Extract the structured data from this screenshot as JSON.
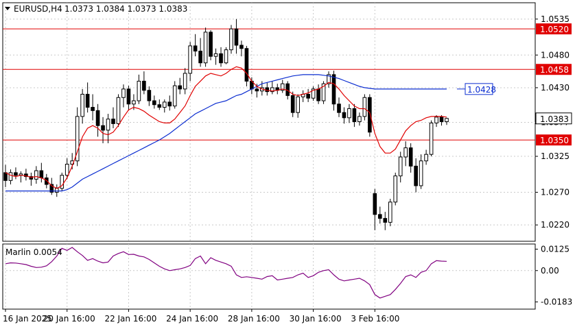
{
  "header": {
    "symbol": "EURUSD,H4",
    "ohlc": "1.0373 1.0384 1.0373 1.0383"
  },
  "colors": {
    "up_candle": "#000000",
    "down_candle": "#000000",
    "bg": "#ffffff",
    "red_level": "#e00000",
    "ma_red": "#e00000",
    "ma_blue": "#0a2cd0",
    "grid": "#c8c8c8",
    "oscillator": "#800080"
  },
  "chart_data": [
    {
      "type": "candlestick",
      "title": "EURUSD,H4",
      "ylim": [
        1.0195,
        1.056
      ],
      "y_ticks": [
        "1.0535",
        "1.0480",
        "1.0430",
        "1.0377",
        "1.0325",
        "1.0270",
        "1.0220"
      ],
      "x_ticks": [
        "16 Jan 2025",
        "20 Jan 16:00",
        "22 Jan 16:00",
        "24 Jan 16:00",
        "28 Jan 16:00",
        "30 Jan 16:00",
        "3 Feb 16:00"
      ],
      "horizontal_levels": [
        {
          "label": "1.0520",
          "value": 1.052
        },
        {
          "label": "1.0458",
          "value": 1.0458
        },
        {
          "label": "1.0350",
          "value": 1.035
        }
      ],
      "current_price_label": "1.0383",
      "current_price": 1.0383,
      "ma_blue_label": "1.0428",
      "ma_blue_value": 1.0428,
      "candles": [
        [
          1.03,
          1.0312,
          1.0278,
          1.0288
        ],
        [
          1.0288,
          1.0305,
          1.0282,
          1.03
        ],
        [
          1.03,
          1.0308,
          1.029,
          1.0296
        ],
        [
          1.0296,
          1.0302,
          1.0285,
          1.0298
        ],
        [
          1.0298,
          1.0306,
          1.0288,
          1.0294
        ],
        [
          1.0294,
          1.03,
          1.028,
          1.029
        ],
        [
          1.029,
          1.031,
          1.0283,
          1.0303
        ],
        [
          1.0303,
          1.0315,
          1.0285,
          1.0292
        ],
        [
          1.0292,
          1.0298,
          1.0276,
          1.0282
        ],
        [
          1.0282,
          1.0292,
          1.0266,
          1.027
        ],
        [
          1.027,
          1.0282,
          1.0263,
          1.0276
        ],
        [
          1.0276,
          1.03,
          1.0272,
          1.0296
        ],
        [
          1.0296,
          1.0322,
          1.029,
          1.0313
        ],
        [
          1.0313,
          1.033,
          1.0305,
          1.0318
        ],
        [
          1.0318,
          1.04,
          1.031,
          1.0386
        ],
        [
          1.0386,
          1.0428,
          1.0375,
          1.042
        ],
        [
          1.042,
          1.0438,
          1.0392,
          1.04
        ],
        [
          1.04,
          1.042,
          1.038,
          1.0395
        ],
        [
          1.0395,
          1.0405,
          1.0355,
          1.0372
        ],
        [
          1.0372,
          1.0385,
          1.0345,
          1.0365
        ],
        [
          1.0365,
          1.039,
          1.0345,
          1.0382
        ],
        [
          1.0382,
          1.04,
          1.0368,
          1.0375
        ],
        [
          1.0375,
          1.042,
          1.037,
          1.0415
        ],
        [
          1.0415,
          1.0435,
          1.04,
          1.0428
        ],
        [
          1.0428,
          1.0433,
          1.0395,
          1.0405
        ],
        [
          1.0405,
          1.042,
          1.0396,
          1.041
        ],
        [
          1.041,
          1.045,
          1.0405,
          1.044
        ],
        [
          1.044,
          1.0455,
          1.042,
          1.0426
        ],
        [
          1.0426,
          1.0432,
          1.0402,
          1.041
        ],
        [
          1.041,
          1.0418,
          1.0398,
          1.0404
        ],
        [
          1.0404,
          1.0412,
          1.0396,
          1.04
        ],
        [
          1.04,
          1.0412,
          1.0392,
          1.0408
        ],
        [
          1.0408,
          1.0418,
          1.0395,
          1.0402
        ],
        [
          1.0402,
          1.044,
          1.0398,
          1.0433
        ],
        [
          1.0433,
          1.0445,
          1.042,
          1.0428
        ],
        [
          1.0428,
          1.046,
          1.042,
          1.0452
        ],
        [
          1.0452,
          1.05,
          1.044,
          1.0494
        ],
        [
          1.0494,
          1.0512,
          1.0478,
          1.0486
        ],
        [
          1.0486,
          1.0506,
          1.0462,
          1.0468
        ],
        [
          1.0468,
          1.0522,
          1.0462,
          1.0515
        ],
        [
          1.0515,
          1.0518,
          1.0472,
          1.0478
        ],
        [
          1.0478,
          1.049,
          1.0465,
          1.0482
        ],
        [
          1.0482,
          1.0492,
          1.0462,
          1.0468
        ],
        [
          1.0468,
          1.0492,
          1.0466,
          1.0488
        ],
        [
          1.0488,
          1.0526,
          1.0482,
          1.052
        ],
        [
          1.052,
          1.0535,
          1.0482,
          1.0495
        ],
        [
          1.0495,
          1.0502,
          1.0478,
          1.049
        ],
        [
          1.049,
          1.0494,
          1.0432,
          1.044
        ],
        [
          1.044,
          1.0446,
          1.042,
          1.0428
        ],
        [
          1.0428,
          1.0436,
          1.0415,
          1.0425
        ],
        [
          1.0425,
          1.044,
          1.0418,
          1.043
        ],
        [
          1.043,
          1.0438,
          1.0418,
          1.0424
        ],
        [
          1.0424,
          1.044,
          1.042,
          1.043
        ],
        [
          1.043,
          1.0436,
          1.042,
          1.0426
        ],
        [
          1.0426,
          1.0442,
          1.0422,
          1.0436
        ],
        [
          1.0436,
          1.044,
          1.0412,
          1.0418
        ],
        [
          1.0418,
          1.0424,
          1.0385,
          1.0392
        ],
        [
          1.0392,
          1.042,
          1.0384,
          1.0416
        ],
        [
          1.0416,
          1.0426,
          1.0408,
          1.042
        ],
        [
          1.042,
          1.0428,
          1.0408,
          1.0414
        ],
        [
          1.0414,
          1.0432,
          1.041,
          1.0428
        ],
        [
          1.0428,
          1.0435,
          1.0405,
          1.041
        ],
        [
          1.041,
          1.044,
          1.0405,
          1.0436
        ],
        [
          1.0436,
          1.0455,
          1.043,
          1.045
        ],
        [
          1.045,
          1.0456,
          1.0395,
          1.0405
        ],
        [
          1.0405,
          1.0415,
          1.0385,
          1.0392
        ],
        [
          1.0392,
          1.04,
          1.0375,
          1.0384
        ],
        [
          1.0384,
          1.0405,
          1.0376,
          1.0398
        ],
        [
          1.0398,
          1.0405,
          1.037,
          1.0378
        ],
        [
          1.0378,
          1.0392,
          1.0372,
          1.0386
        ],
        [
          1.0386,
          1.042,
          1.038,
          1.0415
        ],
        [
          1.0415,
          1.042,
          1.0355,
          1.0362
        ],
        [
          1.0268,
          1.0275,
          1.0212,
          1.0236
        ],
        [
          1.0236,
          1.0248,
          1.0222,
          1.023
        ],
        [
          1.023,
          1.024,
          1.0212,
          1.0224
        ],
        [
          1.0224,
          1.026,
          1.0218,
          1.0255
        ],
        [
          1.0255,
          1.03,
          1.025,
          1.0295
        ],
        [
          1.0295,
          1.0332,
          1.0285,
          1.0324
        ],
        [
          1.0324,
          1.0348,
          1.031,
          1.0338
        ],
        [
          1.0338,
          1.0345,
          1.03,
          1.031
        ],
        [
          1.031,
          1.0322,
          1.027,
          1.028
        ],
        [
          1.028,
          1.0328,
          1.0275,
          1.0318
        ],
        [
          1.0318,
          1.0335,
          1.0312,
          1.0328
        ],
        [
          1.0328,
          1.038,
          1.0325,
          1.0376
        ],
        [
          1.0376,
          1.0388,
          1.037,
          1.0385
        ],
        [
          1.0385,
          1.0388,
          1.0372,
          1.0378
        ],
        [
          1.0378,
          1.0384,
          1.0373,
          1.0383
        ]
      ],
      "ma_red": [
        1.03,
        1.0296,
        1.0294,
        1.0296,
        1.0295,
        1.0293,
        1.0294,
        1.0292,
        1.0288,
        1.028,
        1.0276,
        1.028,
        1.0292,
        1.031,
        1.0332,
        1.0355,
        1.0368,
        1.0372,
        1.0368,
        1.036,
        1.0358,
        1.0362,
        1.0372,
        1.0385,
        1.0396,
        1.04,
        1.0398,
        1.0394,
        1.0388,
        1.0383,
        1.0378,
        1.0376,
        1.0376,
        1.0382,
        1.0392,
        1.0402,
        1.0418,
        1.0432,
        1.044,
        1.0448,
        1.0452,
        1.045,
        1.0448,
        1.0452,
        1.0458,
        1.0462,
        1.046,
        1.0452,
        1.044,
        1.0432,
        1.0428,
        1.0426,
        1.0425,
        1.0426,
        1.0428,
        1.0426,
        1.042,
        1.0418,
        1.042,
        1.0422,
        1.0426,
        1.0428,
        1.0432,
        1.0438,
        1.0436,
        1.0428,
        1.0418,
        1.041,
        1.0402,
        1.0398,
        1.0398,
        1.0392,
        1.036,
        1.034,
        1.033,
        1.033,
        1.0336,
        1.035,
        1.0364,
        1.0372,
        1.0378,
        1.038,
        1.0384,
        1.0386,
        1.0386,
        1.0386,
        1.0385
      ],
      "ma_blue": [
        1.0272,
        1.0272,
        1.0272,
        1.0272,
        1.0272,
        1.0272,
        1.0272,
        1.0272,
        1.0272,
        1.0272,
        1.0272,
        1.0272,
        1.0274,
        1.0278,
        1.0284,
        1.029,
        1.0294,
        1.0298,
        1.0302,
        1.0306,
        1.031,
        1.0314,
        1.0318,
        1.0322,
        1.0326,
        1.033,
        1.0334,
        1.0338,
        1.0342,
        1.0346,
        1.035,
        1.0355,
        1.036,
        1.0366,
        1.0372,
        1.0378,
        1.0384,
        1.039,
        1.0394,
        1.0398,
        1.0402,
        1.0406,
        1.0408,
        1.041,
        1.0414,
        1.0418,
        1.042,
        1.0424,
        1.0428,
        1.0432,
        1.0436,
        1.0438,
        1.044,
        1.0442,
        1.0444,
        1.0446,
        1.0448,
        1.0449,
        1.045,
        1.045,
        1.045,
        1.045,
        1.0449,
        1.0448,
        1.0446,
        1.0444,
        1.0441,
        1.0438,
        1.0435,
        1.0432,
        1.043,
        1.0429,
        1.0428,
        1.0428,
        1.0428,
        1.0428,
        1.0428,
        1.0428,
        1.0428,
        1.0428,
        1.0428,
        1.0428,
        1.0428,
        1.0428,
        1.0428,
        1.0428,
        1.0428
      ]
    },
    {
      "type": "line",
      "title": "Marlin 0.0054",
      "ylim": [
        -0.0225,
        0.0155
      ],
      "y_ticks": [
        "0.0125",
        "0.00",
        "-0.0183"
      ],
      "values": [
        0.004,
        0.0045,
        0.0044,
        0.004,
        0.0035,
        0.0025,
        0.0018,
        0.002,
        0.0028,
        0.0052,
        0.0085,
        0.013,
        0.0118,
        0.0135,
        0.011,
        0.0088,
        0.006,
        0.007,
        0.0055,
        0.0045,
        0.005,
        0.0085,
        0.01,
        0.011,
        0.0094,
        0.0095,
        0.0085,
        0.008,
        0.0065,
        0.0045,
        0.0025,
        0.001,
        0.0,
        0.0005,
        0.001,
        0.0018,
        0.003,
        0.007,
        0.0085,
        0.004,
        0.0075,
        0.006,
        0.005,
        0.004,
        0.0025,
        -0.0025,
        -0.004,
        -0.0036,
        -0.004,
        -0.0045,
        -0.005,
        -0.0035,
        -0.003,
        -0.0055,
        -0.005,
        -0.0045,
        -0.004,
        -0.0025,
        -0.0015,
        -0.004,
        -0.003,
        -0.001,
        0.0,
        0.0005,
        -0.0025,
        -0.005,
        -0.006,
        -0.0055,
        -0.005,
        -0.0045,
        -0.006,
        -0.0082,
        -0.014,
        -0.016,
        -0.015,
        -0.014,
        -0.011,
        -0.0075,
        -0.0035,
        -0.0025,
        -0.004,
        -0.001,
        0.0,
        0.004,
        0.0058,
        0.0055,
        0.0054
      ]
    }
  ]
}
